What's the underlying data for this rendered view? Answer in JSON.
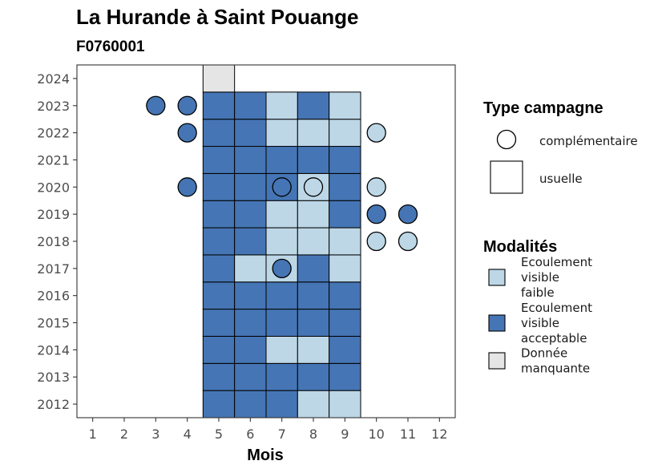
{
  "chart_data": {
    "type": "heatmap",
    "title": "La Hurande à Saint Pouange",
    "subtitle": "F0760001",
    "xlabel": "Mois",
    "ylabel": "",
    "x_ticks": [
      "1",
      "2",
      "3",
      "4",
      "5",
      "6",
      "7",
      "8",
      "9",
      "10",
      "11",
      "12"
    ],
    "y_ticks": [
      "2012",
      "2013",
      "2014",
      "2015",
      "2016",
      "2017",
      "2018",
      "2019",
      "2020",
      "2021",
      "2022",
      "2023",
      "2024"
    ],
    "xlim": [
      0.5,
      12.5
    ],
    "ylim": [
      2011.5,
      2024.5
    ],
    "grid": false,
    "colors": {
      "Ecoulement visible faible": "#BDD7E7",
      "Ecoulement visible acceptable": "#4575B4",
      "Donnée manquante": "#E5E5E5"
    },
    "usuelle": [
      {
        "year": 2012,
        "month": 5,
        "mod": "Ecoulement visible acceptable"
      },
      {
        "year": 2012,
        "month": 6,
        "mod": "Ecoulement visible acceptable"
      },
      {
        "year": 2012,
        "month": 7,
        "mod": "Ecoulement visible acceptable"
      },
      {
        "year": 2012,
        "month": 8,
        "mod": "Ecoulement visible faible"
      },
      {
        "year": 2012,
        "month": 9,
        "mod": "Ecoulement visible faible"
      },
      {
        "year": 2013,
        "month": 5,
        "mod": "Ecoulement visible acceptable"
      },
      {
        "year": 2013,
        "month": 6,
        "mod": "Ecoulement visible acceptable"
      },
      {
        "year": 2013,
        "month": 7,
        "mod": "Ecoulement visible acceptable"
      },
      {
        "year": 2013,
        "month": 8,
        "mod": "Ecoulement visible acceptable"
      },
      {
        "year": 2013,
        "month": 9,
        "mod": "Ecoulement visible acceptable"
      },
      {
        "year": 2014,
        "month": 5,
        "mod": "Ecoulement visible acceptable"
      },
      {
        "year": 2014,
        "month": 6,
        "mod": "Ecoulement visible acceptable"
      },
      {
        "year": 2014,
        "month": 7,
        "mod": "Ecoulement visible faible"
      },
      {
        "year": 2014,
        "month": 8,
        "mod": "Ecoulement visible faible"
      },
      {
        "year": 2014,
        "month": 9,
        "mod": "Ecoulement visible acceptable"
      },
      {
        "year": 2015,
        "month": 5,
        "mod": "Ecoulement visible acceptable"
      },
      {
        "year": 2015,
        "month": 6,
        "mod": "Ecoulement visible acceptable"
      },
      {
        "year": 2015,
        "month": 7,
        "mod": "Ecoulement visible acceptable"
      },
      {
        "year": 2015,
        "month": 8,
        "mod": "Ecoulement visible acceptable"
      },
      {
        "year": 2015,
        "month": 9,
        "mod": "Ecoulement visible acceptable"
      },
      {
        "year": 2016,
        "month": 5,
        "mod": "Ecoulement visible acceptable"
      },
      {
        "year": 2016,
        "month": 6,
        "mod": "Ecoulement visible acceptable"
      },
      {
        "year": 2016,
        "month": 7,
        "mod": "Ecoulement visible acceptable"
      },
      {
        "year": 2016,
        "month": 8,
        "mod": "Ecoulement visible acceptable"
      },
      {
        "year": 2016,
        "month": 9,
        "mod": "Ecoulement visible acceptable"
      },
      {
        "year": 2017,
        "month": 5,
        "mod": "Ecoulement visible acceptable"
      },
      {
        "year": 2017,
        "month": 6,
        "mod": "Ecoulement visible faible"
      },
      {
        "year": 2017,
        "month": 7,
        "mod": "Ecoulement visible faible"
      },
      {
        "year": 2017,
        "month": 8,
        "mod": "Ecoulement visible acceptable"
      },
      {
        "year": 2017,
        "month": 9,
        "mod": "Ecoulement visible faible"
      },
      {
        "year": 2018,
        "month": 5,
        "mod": "Ecoulement visible acceptable"
      },
      {
        "year": 2018,
        "month": 6,
        "mod": "Ecoulement visible acceptable"
      },
      {
        "year": 2018,
        "month": 7,
        "mod": "Ecoulement visible faible"
      },
      {
        "year": 2018,
        "month": 8,
        "mod": "Ecoulement visible faible"
      },
      {
        "year": 2018,
        "month": 9,
        "mod": "Ecoulement visible faible"
      },
      {
        "year": 2019,
        "month": 5,
        "mod": "Ecoulement visible acceptable"
      },
      {
        "year": 2019,
        "month": 6,
        "mod": "Ecoulement visible acceptable"
      },
      {
        "year": 2019,
        "month": 7,
        "mod": "Ecoulement visible faible"
      },
      {
        "year": 2019,
        "month": 8,
        "mod": "Ecoulement visible faible"
      },
      {
        "year": 2019,
        "month": 9,
        "mod": "Ecoulement visible acceptable"
      },
      {
        "year": 2020,
        "month": 5,
        "mod": "Ecoulement visible acceptable"
      },
      {
        "year": 2020,
        "month": 6,
        "mod": "Ecoulement visible acceptable"
      },
      {
        "year": 2020,
        "month": 7,
        "mod": "Ecoulement visible acceptable"
      },
      {
        "year": 2020,
        "month": 8,
        "mod": "Ecoulement visible faible"
      },
      {
        "year": 2020,
        "month": 9,
        "mod": "Ecoulement visible acceptable"
      },
      {
        "year": 2021,
        "month": 5,
        "mod": "Ecoulement visible acceptable"
      },
      {
        "year": 2021,
        "month": 6,
        "mod": "Ecoulement visible acceptable"
      },
      {
        "year": 2021,
        "month": 7,
        "mod": "Ecoulement visible acceptable"
      },
      {
        "year": 2021,
        "month": 8,
        "mod": "Ecoulement visible acceptable"
      },
      {
        "year": 2021,
        "month": 9,
        "mod": "Ecoulement visible acceptable"
      },
      {
        "year": 2022,
        "month": 5,
        "mod": "Ecoulement visible acceptable"
      },
      {
        "year": 2022,
        "month": 6,
        "mod": "Ecoulement visible acceptable"
      },
      {
        "year": 2022,
        "month": 7,
        "mod": "Ecoulement visible faible"
      },
      {
        "year": 2022,
        "month": 8,
        "mod": "Ecoulement visible faible"
      },
      {
        "year": 2022,
        "month": 9,
        "mod": "Ecoulement visible faible"
      },
      {
        "year": 2023,
        "month": 5,
        "mod": "Ecoulement visible acceptable"
      },
      {
        "year": 2023,
        "month": 6,
        "mod": "Ecoulement visible acceptable"
      },
      {
        "year": 2023,
        "month": 7,
        "mod": "Ecoulement visible faible"
      },
      {
        "year": 2023,
        "month": 8,
        "mod": "Ecoulement visible acceptable"
      },
      {
        "year": 2023,
        "month": 9,
        "mod": "Ecoulement visible faible"
      },
      {
        "year": 2024,
        "month": 5,
        "mod": "Donnée manquante"
      }
    ],
    "complementaire": [
      {
        "year": 2023,
        "month": 3,
        "mod": "Ecoulement visible acceptable"
      },
      {
        "year": 2023,
        "month": 4,
        "mod": "Ecoulement visible acceptable"
      },
      {
        "year": 2022,
        "month": 4,
        "mod": "Ecoulement visible acceptable"
      },
      {
        "year": 2022,
        "month": 10,
        "mod": "Ecoulement visible faible"
      },
      {
        "year": 2020,
        "month": 4,
        "mod": "Ecoulement visible acceptable"
      },
      {
        "year": 2020,
        "month": 7,
        "mod": "Ecoulement visible acceptable"
      },
      {
        "year": 2020,
        "month": 8,
        "mod": "Ecoulement visible faible"
      },
      {
        "year": 2020,
        "month": 10,
        "mod": "Ecoulement visible faible"
      },
      {
        "year": 2019,
        "month": 10,
        "mod": "Ecoulement visible acceptable"
      },
      {
        "year": 2019,
        "month": 11,
        "mod": "Ecoulement visible acceptable"
      },
      {
        "year": 2018,
        "month": 10,
        "mod": "Ecoulement visible faible"
      },
      {
        "year": 2018,
        "month": 11,
        "mod": "Ecoulement visible faible"
      },
      {
        "year": 2017,
        "month": 7,
        "mod": "Ecoulement visible acceptable"
      }
    ],
    "legend": {
      "placement": "right",
      "shape_title": "Type campagne",
      "shape_entries": [
        "complémentaire",
        "usuelle"
      ],
      "fill_title": "Modalités",
      "fill_entries": [
        {
          "label_lines": [
            "Ecoulement",
            "visible",
            "faible"
          ],
          "color": "#BDD7E7"
        },
        {
          "label_lines": [
            "Ecoulement",
            "visible",
            "acceptable"
          ],
          "color": "#4575B4"
        },
        {
          "label_lines": [
            "Donnée",
            "manquante"
          ],
          "color": "#E5E5E5"
        }
      ]
    }
  }
}
